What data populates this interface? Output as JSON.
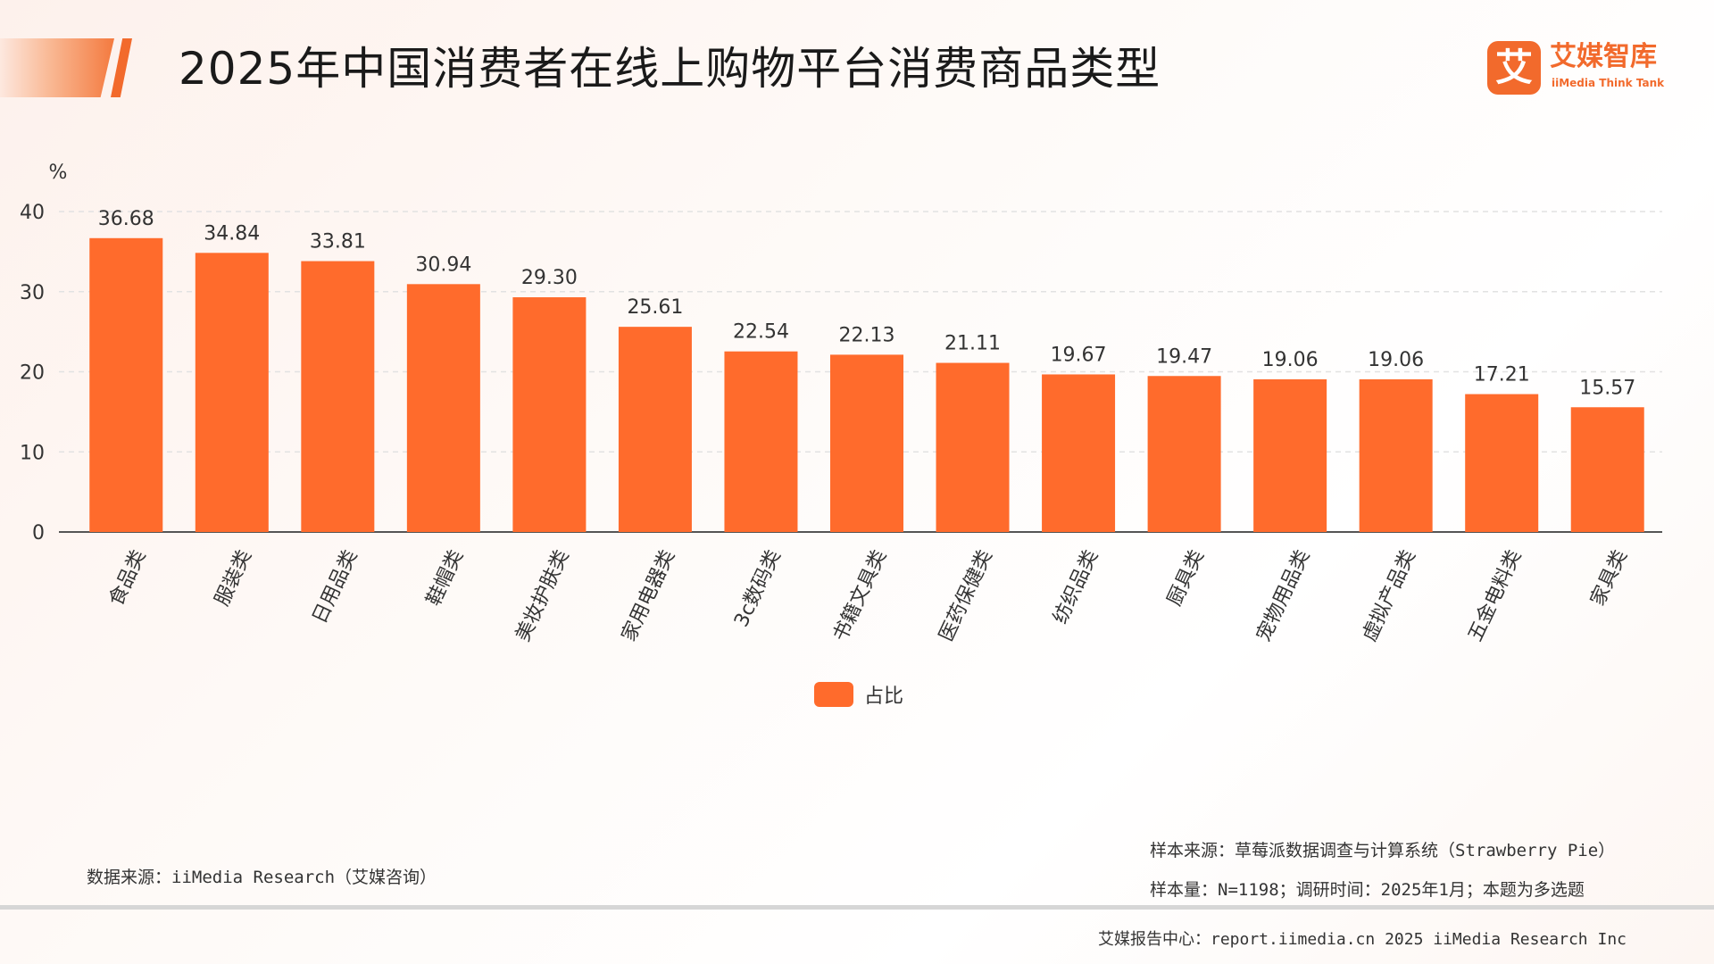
{
  "header": {
    "title": "2025年中国消费者在线上购物平台消费商品类型"
  },
  "logo": {
    "mark": "艾",
    "name_cn": "艾媒智库",
    "name_en": "iiMedia Think Tank"
  },
  "chart_data": {
    "type": "bar",
    "ylabel": "%",
    "ylim": [
      0,
      40
    ],
    "yticks": [
      0,
      10,
      20,
      30,
      40
    ],
    "grid": true,
    "categories": [
      "食品类",
      "服装类",
      "日用品类",
      "鞋帽类",
      "美妆护肤类",
      "家用电器类",
      "3c数码类",
      "书籍文具类",
      "医药保健类",
      "纺织品类",
      "厨具类",
      "宠物用品类",
      "虚拟产品类",
      "五金电料类",
      "家具类"
    ],
    "series": [
      {
        "name": "占比",
        "color": "#ff6b2c",
        "values": [
          36.68,
          34.84,
          33.81,
          30.94,
          29.3,
          25.61,
          22.54,
          22.13,
          21.11,
          19.67,
          19.47,
          19.06,
          19.06,
          17.21,
          15.57
        ],
        "labels": [
          "36.68",
          "34.84",
          "33.81",
          "30.94",
          "29.30",
          "25.61",
          "22.54",
          "22.13",
          "21.11",
          "19.67",
          "19.47",
          "19.06",
          "19.06",
          "17.21",
          "15.57"
        ]
      }
    ],
    "legend_position": "bottom"
  },
  "notes": {
    "data_source": "数据来源：iiMedia Research（艾媒咨询）",
    "sample_source": "样本来源：草莓派数据调查与计算系统（Strawberry Pie）",
    "sample_size": "样本量：N=1198；调研时间：2025年1月；本题为多选题"
  },
  "footer": {
    "text": "艾媒报告中心：report.iimedia.cn   2025 iiMedia Research Inc"
  }
}
